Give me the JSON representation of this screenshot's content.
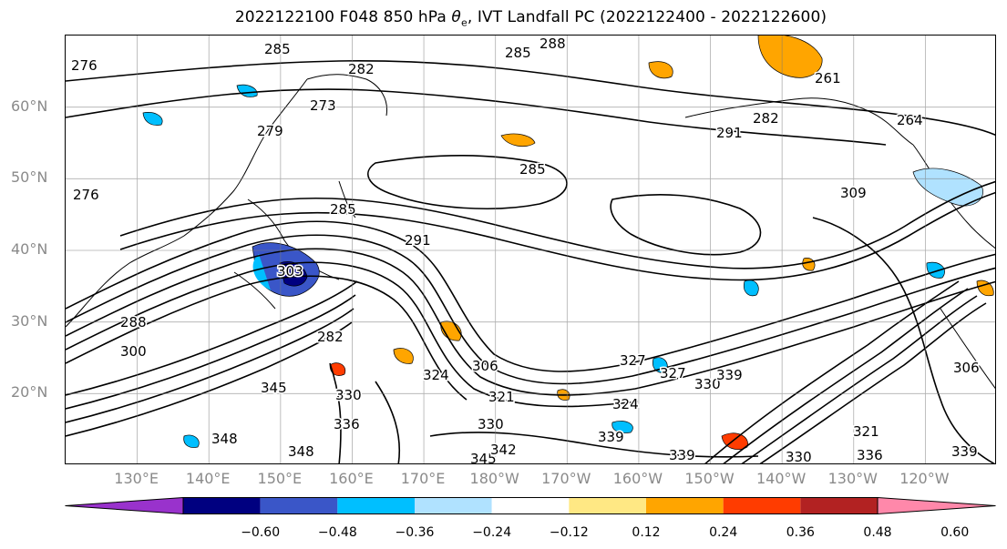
{
  "title": {
    "prefix": "2022122100 F048 850 hPa ",
    "symbol": "θ",
    "symbol_sub": "e",
    "suffix": ", IVT Landfall PC (2022122400 - 2022122600)"
  },
  "map": {
    "projection": "PlateCarree",
    "lon_range": [
      120,
      250
    ],
    "lat_range": [
      10,
      70
    ],
    "gridlines": true,
    "lat_labels": [
      "60°N",
      "50°N",
      "40°N",
      "30°N",
      "20°N"
    ],
    "lon_labels": [
      "130°E",
      "140°E",
      "150°E",
      "160°E",
      "170°E",
      "180°W",
      "170°W",
      "160°W",
      "150°W",
      "140°W",
      "130°W",
      "120°W"
    ],
    "contour_variable": "850 hPa theta-e",
    "contour_labels": [
      "276",
      "285",
      "282",
      "288",
      "285",
      "279",
      "276",
      "273",
      "285",
      "291",
      "291",
      "282",
      "261",
      "264",
      "309",
      "285",
      "303",
      "288",
      "300",
      "282",
      "345",
      "330",
      "330",
      "324",
      "306",
      "327",
      "321",
      "330",
      "336",
      "348",
      "348",
      "339",
      "339",
      "345",
      "342",
      "339",
      "330",
      "336",
      "321",
      "306",
      "339",
      "327",
      "324"
    ],
    "shading_variable": "IVT Landfall PC"
  },
  "colorbar": {
    "extend": "both",
    "colors": [
      "#9932cc",
      "#000080",
      "#3a56c8",
      "#00bfff",
      "#b0e2ff",
      "#ffffff",
      "#ffe884",
      "#ffa500",
      "#ff3c00",
      "#b22222",
      "#ff88aa"
    ],
    "bounds": [
      -0.6,
      -0.48,
      -0.36,
      -0.24,
      -0.12,
      0.12,
      0.24,
      0.36,
      0.48,
      0.6
    ],
    "tick_labels": [
      "−0.60",
      "−0.48",
      "−0.36",
      "−0.24",
      "−0.12",
      "0.12",
      "0.24",
      "0.36",
      "0.48",
      "0.60"
    ]
  }
}
